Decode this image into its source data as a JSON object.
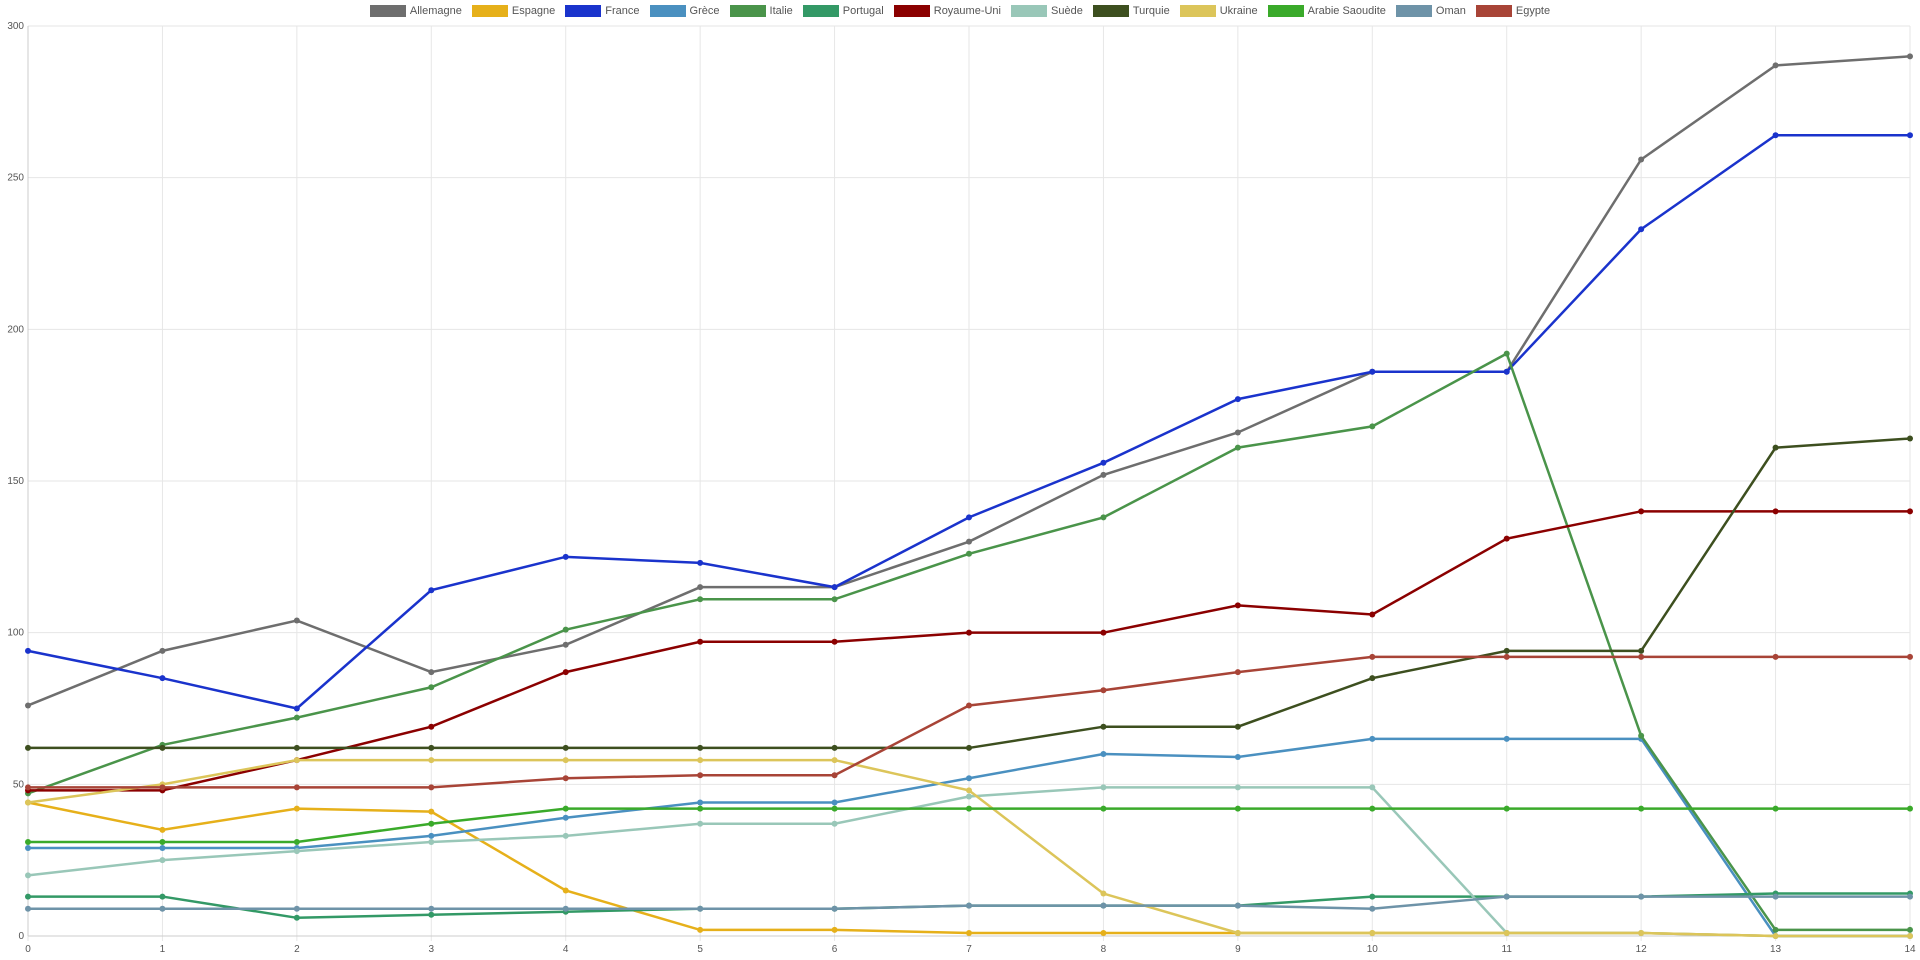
{
  "chart_data": {
    "type": "line",
    "x": [
      0,
      1,
      2,
      3,
      4,
      5,
      6,
      7,
      8,
      9,
      10,
      11,
      12,
      13,
      14
    ],
    "xlim": [
      0,
      14
    ],
    "xticks": [
      0,
      1,
      2,
      3,
      4,
      5,
      6,
      7,
      8,
      9,
      10,
      11,
      12,
      13,
      14
    ],
    "ylim": [
      0,
      300
    ],
    "yticks": [
      0,
      50,
      100,
      150,
      200,
      250,
      300
    ],
    "grid": true,
    "legend": "top",
    "series": [
      {
        "name": "Allemagne",
        "color": "#6e6e6e",
        "values": [
          76,
          94,
          104,
          87,
          96,
          115,
          115,
          130,
          152,
          166,
          186,
          186,
          256,
          287,
          290
        ]
      },
      {
        "name": "Espagne",
        "color": "#e6b01a",
        "values": [
          44,
          35,
          42,
          41,
          15,
          2,
          2,
          1,
          1,
          1,
          1,
          1,
          1,
          0,
          0
        ]
      },
      {
        "name": "France",
        "color": "#1a33cc",
        "values": [
          94,
          85,
          75,
          114,
          125,
          123,
          115,
          138,
          156,
          177,
          186,
          186,
          233,
          264,
          264
        ]
      },
      {
        "name": "Grèce",
        "color": "#4a90c0",
        "values": [
          29,
          29,
          29,
          33,
          39,
          44,
          44,
          52,
          60,
          59,
          65,
          65,
          65,
          0,
          0
        ]
      },
      {
        "name": "Italie",
        "color": "#4a944a",
        "values": [
          47,
          63,
          72,
          82,
          101,
          111,
          111,
          126,
          138,
          161,
          168,
          192,
          66,
          2,
          2
        ]
      },
      {
        "name": "Portugal",
        "color": "#339966",
        "values": [
          13,
          13,
          6,
          7,
          8,
          9,
          9,
          10,
          10,
          10,
          13,
          13,
          13,
          14,
          14
        ]
      },
      {
        "name": "Royaume-Uni",
        "color": "#8b0000",
        "values": [
          48,
          48,
          58,
          69,
          87,
          97,
          97,
          100,
          100,
          109,
          106,
          131,
          140,
          140,
          140
        ]
      },
      {
        "name": "Suède",
        "color": "#99c7b8",
        "values": [
          20,
          25,
          28,
          31,
          33,
          37,
          37,
          46,
          49,
          49,
          49,
          1,
          1,
          0,
          0
        ]
      },
      {
        "name": "Turquie",
        "color": "#3d4f1f",
        "values": [
          62,
          62,
          62,
          62,
          62,
          62,
          62,
          62,
          69,
          69,
          85,
          94,
          94,
          161,
          164
        ]
      },
      {
        "name": "Ukraine",
        "color": "#dcc55a",
        "values": [
          44,
          50,
          58,
          58,
          58,
          58,
          58,
          48,
          14,
          1,
          1,
          1,
          1,
          0,
          0
        ]
      },
      {
        "name": "Arabie Saoudite",
        "color": "#3aaa2a",
        "values": [
          31,
          31,
          31,
          37,
          42,
          42,
          42,
          42,
          42,
          42,
          42,
          42,
          42,
          42,
          42
        ]
      },
      {
        "name": "Oman",
        "color": "#6e93a8",
        "values": [
          9,
          9,
          9,
          9,
          9,
          9,
          9,
          10,
          10,
          10,
          9,
          13,
          13,
          13,
          13
        ]
      },
      {
        "name": "Egypte",
        "color": "#a84437",
        "values": [
          49,
          49,
          49,
          49,
          52,
          53,
          53,
          76,
          81,
          87,
          92,
          92,
          92,
          92,
          92
        ]
      }
    ]
  }
}
